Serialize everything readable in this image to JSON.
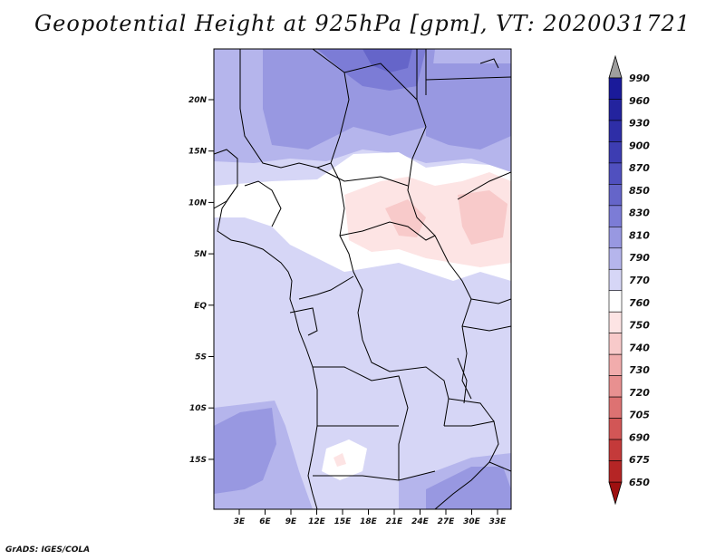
{
  "title": "Geopotential Height at 925hPa [gpm], VT: 2020031721",
  "credit": "GrADS: IGES/COLA",
  "map": {
    "lat_labels": [
      "20N",
      "15N",
      "10N",
      "5N",
      "EQ",
      "5S",
      "10S",
      "15S"
    ],
    "lon_labels": [
      "3E",
      "6E",
      "9E",
      "12E",
      "15E",
      "18E",
      "21E",
      "24E",
      "27E",
      "30E",
      "33E"
    ],
    "lat_range": [
      -20,
      25
    ],
    "lon_range": [
      0,
      35
    ]
  },
  "colorbar": {
    "labels": [
      "990",
      "960",
      "930",
      "900",
      "870",
      "850",
      "830",
      "810",
      "790",
      "770",
      "760",
      "750",
      "740",
      "730",
      "720",
      "705",
      "690",
      "675",
      "650"
    ],
    "colors": [
      "#9e9e9e",
      "#1a1a9a",
      "#23239e",
      "#2e2ea7",
      "#3d3db2",
      "#5050bf",
      "#6565c9",
      "#7c7cd6",
      "#9898e1",
      "#b5b5ec",
      "#d6d6f6",
      "#ffffff",
      "#fde4e4",
      "#f8caca",
      "#f1acac",
      "#e89090",
      "#dd7272",
      "#d25656",
      "#c43a3a",
      "#b52525",
      "#9e1010"
    ]
  }
}
